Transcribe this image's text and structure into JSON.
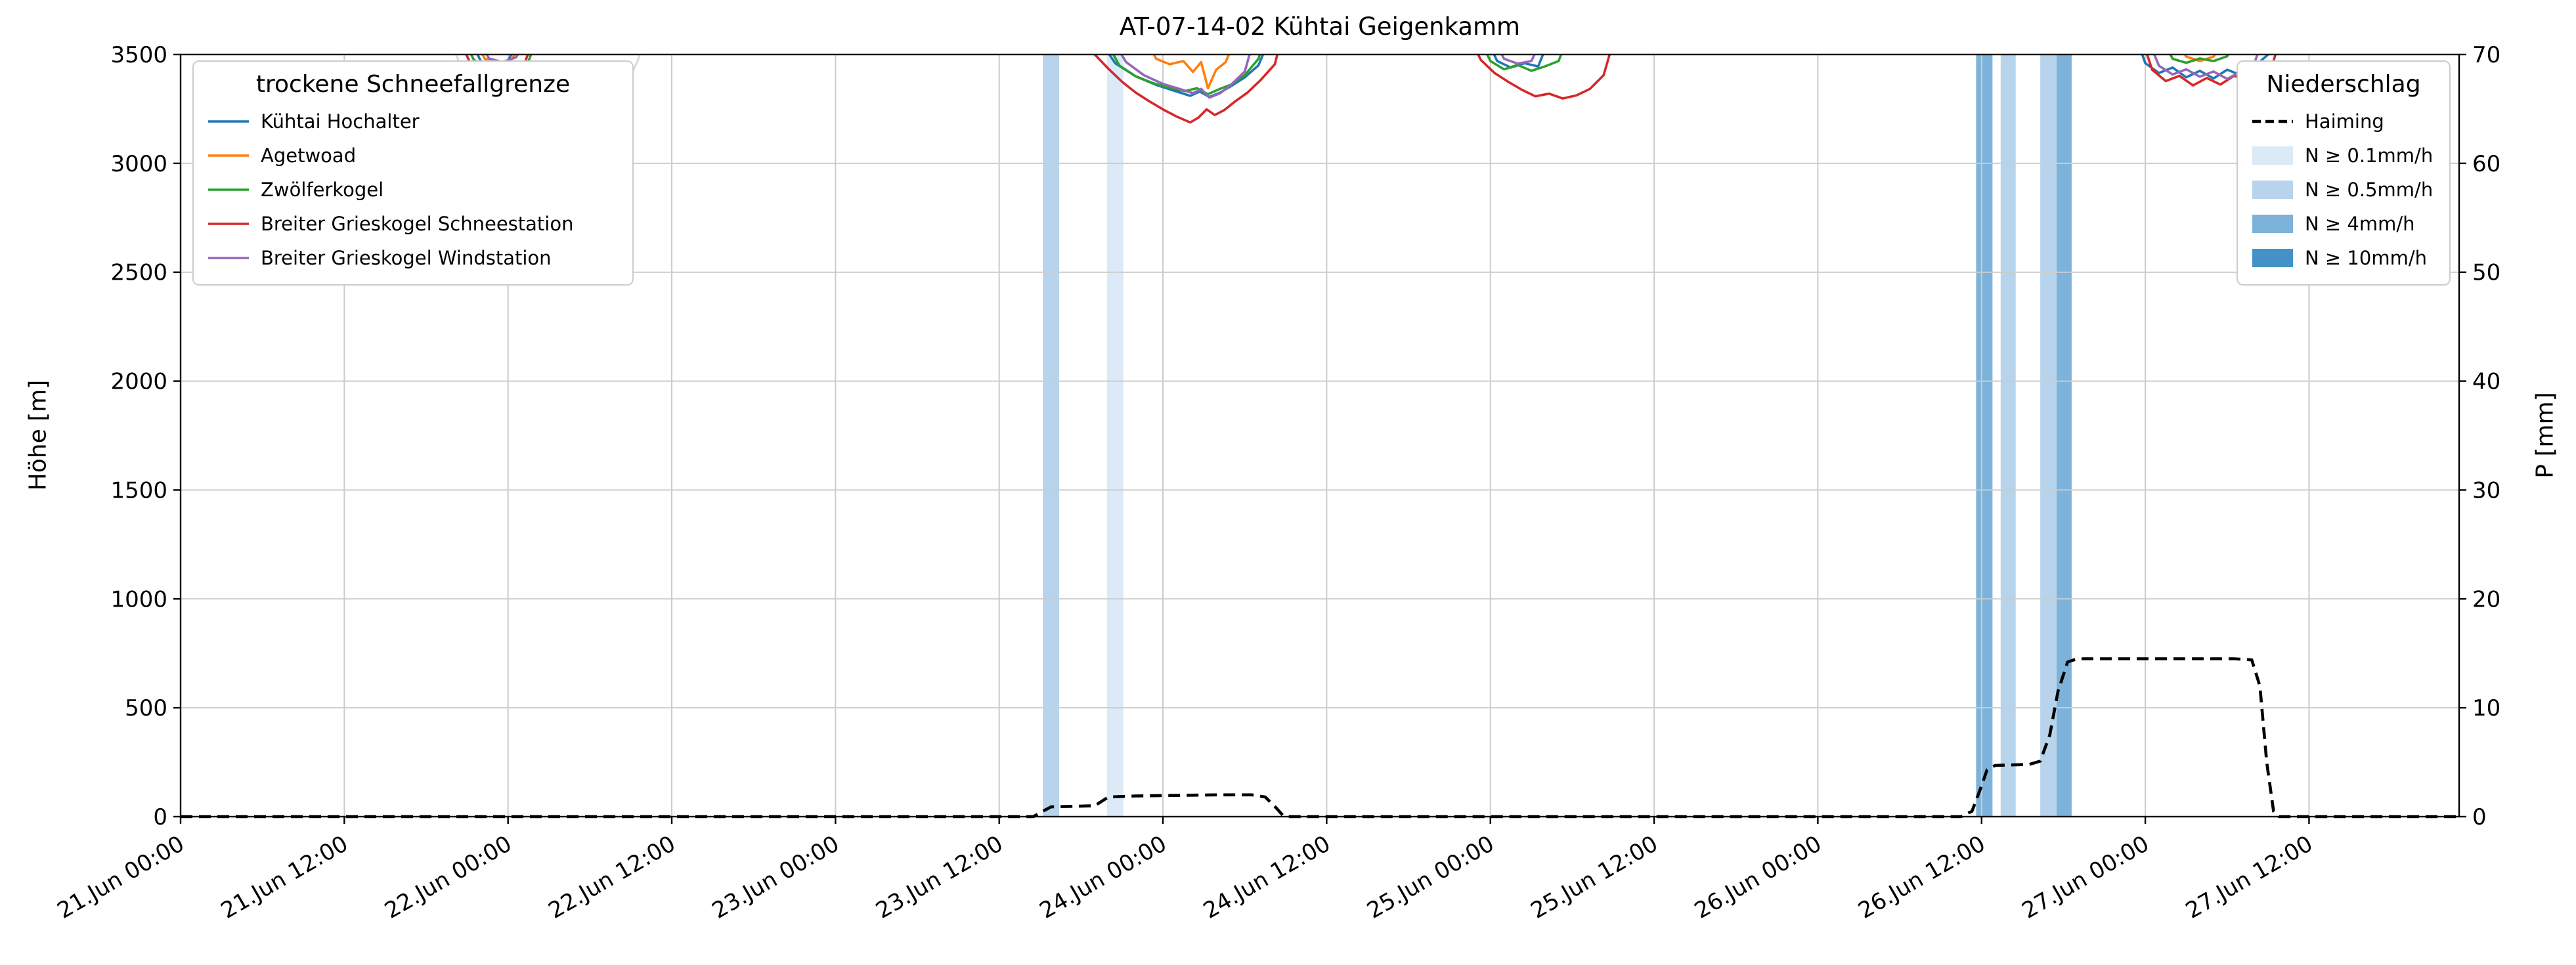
{
  "chart_data": {
    "type": "line",
    "title": "AT-07-14-02 Kühtai Geigenkamm",
    "ylabel_left": "Höhe [m]",
    "ylabel_right": "P [mm]",
    "ylim_left": [
      0,
      3500
    ],
    "ylim_right": [
      0,
      70
    ],
    "xlim": [
      0,
      167
    ],
    "x_unit": "hours since 21.Jun 00:00",
    "grid": true,
    "x_ticks": [
      {
        "h": 0,
        "label": "21.Jun 00:00"
      },
      {
        "h": 12,
        "label": "21.Jun 12:00"
      },
      {
        "h": 24,
        "label": "22.Jun 00:00"
      },
      {
        "h": 36,
        "label": "22.Jun 12:00"
      },
      {
        "h": 48,
        "label": "23.Jun 00:00"
      },
      {
        "h": 60,
        "label": "23.Jun 12:00"
      },
      {
        "h": 72,
        "label": "24.Jun 00:00"
      },
      {
        "h": 84,
        "label": "24.Jun 12:00"
      },
      {
        "h": 96,
        "label": "25.Jun 00:00"
      },
      {
        "h": 108,
        "label": "25.Jun 12:00"
      },
      {
        "h": 120,
        "label": "26.Jun 00:00"
      },
      {
        "h": 132,
        "label": "26.Jun 12:00"
      },
      {
        "h": 144,
        "label": "27.Jun 00:00"
      },
      {
        "h": 156,
        "label": "27.Jun 12:00"
      }
    ],
    "y_ticks_left": [
      0,
      500,
      1000,
      1500,
      2000,
      2500,
      3000,
      3500
    ],
    "y_ticks_right": [
      0,
      10,
      20,
      30,
      40,
      50,
      60,
      70
    ],
    "legend_snowline": {
      "title": "trockene Schneefallgrenze",
      "entries": [
        {
          "label": "Kühtai Hochalter",
          "color": "#1f77b4"
        },
        {
          "label": "Agetwoad",
          "color": "#ff7f0e"
        },
        {
          "label": "Zwölferkogel",
          "color": "#2ca02c"
        },
        {
          "label": "Breiter Grieskogel Schneestation",
          "color": "#d62728"
        },
        {
          "label": "Breiter Grieskogel Windstation",
          "color": "#9467bd"
        }
      ]
    },
    "legend_precip": {
      "title": "Niederschlag",
      "line_entry": {
        "label": "Haiming",
        "color": "#000000",
        "dashed": true
      },
      "band_entries": [
        {
          "label": "N ≥ 0.1mm/h",
          "level": "0.1"
        },
        {
          "label": "N ≥ 0.5mm/h",
          "level": "0.5"
        },
        {
          "label": "N ≥ 4mm/h",
          "level": "4"
        },
        {
          "label": "N ≥ 10mm/h",
          "level": "10"
        }
      ]
    },
    "band_colors": {
      "0.1": "#dce9f6",
      "0.5": "#b7d4ec",
      "4": "#7db3da",
      "10": "#4292c6"
    },
    "precip_bands": [
      {
        "start": 63.2,
        "end": 64.4,
        "level": "0.5"
      },
      {
        "start": 67.9,
        "end": 69.1,
        "level": "0.1"
      },
      {
        "start": 131.6,
        "end": 132.8,
        "level": "4"
      },
      {
        "start": 133.4,
        "end": 134.5,
        "level": "0.5"
      },
      {
        "start": 136.3,
        "end": 137.5,
        "level": "0.5"
      },
      {
        "start": 137.5,
        "end": 138.6,
        "level": "4"
      }
    ],
    "series": [
      {
        "name": "unlabeled",
        "color": "#d9d9d9",
        "axis": "left",
        "width": 3,
        "segments": [
          [
            [
              19.5,
              3600
            ],
            [
              21,
              3380
            ],
            [
              22.5,
              3200
            ],
            [
              24,
              3080
            ],
            [
              25.5,
              2990
            ],
            [
              26.5,
              2955
            ],
            [
              27.5,
              2990
            ],
            [
              28.5,
              3040
            ],
            [
              29.5,
              3015
            ],
            [
              30.5,
              3090
            ],
            [
              31.5,
              3200
            ],
            [
              32.5,
              3340
            ],
            [
              33.5,
              3470
            ],
            [
              34.2,
              3600
            ]
          ]
        ]
      },
      {
        "name": "Kühtai Hochalter",
        "color": "#1f77b4",
        "axis": "left",
        "segments": [
          [
            [
              21,
              3600
            ],
            [
              22,
              3470
            ],
            [
              23,
              3450
            ],
            [
              24,
              3470
            ],
            [
              25,
              3600
            ]
          ],
          [
            [
              67,
              3600
            ],
            [
              68.5,
              3460
            ],
            [
              70,
              3400
            ],
            [
              71.5,
              3360
            ],
            [
              73,
              3330
            ],
            [
              74,
              3310
            ],
            [
              74.7,
              3330
            ],
            [
              75.4,
              3305
            ],
            [
              76.2,
              3325
            ],
            [
              77,
              3355
            ],
            [
              78,
              3395
            ],
            [
              79,
              3450
            ],
            [
              80,
              3600
            ]
          ],
          [
            [
              95.5,
              3600
            ],
            [
              96.5,
              3470
            ],
            [
              97.5,
              3440
            ],
            [
              98.5,
              3460
            ],
            [
              99.5,
              3445
            ],
            [
              100.5,
              3600
            ]
          ],
          [
            [
              143.2,
              3600
            ],
            [
              144,
              3460
            ],
            [
              145,
              3415
            ],
            [
              146,
              3440
            ],
            [
              147,
              3395
            ],
            [
              148,
              3425
            ],
            [
              149,
              3390
            ],
            [
              150,
              3430
            ],
            [
              151,
              3405
            ],
            [
              152,
              3445
            ],
            [
              153,
              3500
            ],
            [
              153.6,
              3600
            ]
          ]
        ]
      },
      {
        "name": "Agetwoad",
        "color": "#ff7f0e",
        "axis": "left",
        "segments": [
          [
            [
              21.3,
              3600
            ],
            [
              22.3,
              3480
            ],
            [
              23.3,
              3460
            ],
            [
              24.3,
              3480
            ],
            [
              25.3,
              3600
            ]
          ],
          [
            [
              70.5,
              3600
            ],
            [
              71.5,
              3480
            ],
            [
              72.5,
              3455
            ],
            [
              73.5,
              3470
            ],
            [
              74.2,
              3420
            ],
            [
              74.8,
              3465
            ],
            [
              75.3,
              3345
            ],
            [
              75.9,
              3430
            ],
            [
              76.6,
              3465
            ],
            [
              77.5,
              3600
            ]
          ],
          [
            [
              146,
              3600
            ],
            [
              147,
              3490
            ],
            [
              148,
              3470
            ],
            [
              149,
              3490
            ],
            [
              150,
              3600
            ]
          ]
        ]
      },
      {
        "name": "Zwölferkogel",
        "color": "#2ca02c",
        "axis": "left",
        "segments": [
          [
            [
              20.5,
              3600
            ],
            [
              21.5,
              3475
            ],
            [
              22.5,
              3440
            ],
            [
              23.5,
              3460
            ],
            [
              24.5,
              3435
            ],
            [
              25.5,
              3470
            ],
            [
              26.3,
              3600
            ]
          ],
          [
            [
              67.5,
              3600
            ],
            [
              68.8,
              3450
            ],
            [
              70,
              3400
            ],
            [
              71.2,
              3370
            ],
            [
              72.4,
              3348
            ],
            [
              73.6,
              3332
            ],
            [
              74.5,
              3345
            ],
            [
              75.3,
              3318
            ],
            [
              76.1,
              3340
            ],
            [
              77,
              3362
            ],
            [
              78,
              3405
            ],
            [
              79,
              3480
            ],
            [
              79.6,
              3600
            ]
          ],
          [
            [
              95,
              3600
            ],
            [
              96,
              3470
            ],
            [
              97,
              3432
            ],
            [
              98,
              3452
            ],
            [
              99,
              3425
            ],
            [
              100,
              3445
            ],
            [
              101,
              3470
            ],
            [
              101.8,
              3600
            ]
          ],
          [
            [
              145,
              3600
            ],
            [
              146,
              3480
            ],
            [
              147,
              3462
            ],
            [
              148,
              3482
            ],
            [
              149,
              3470
            ],
            [
              150,
              3492
            ],
            [
              150.8,
              3600
            ]
          ]
        ]
      },
      {
        "name": "Breiter Grieskogel Schneestation",
        "color": "#d62728",
        "axis": "left",
        "segments": [
          [
            [
              20.2,
              3600
            ],
            [
              21.2,
              3465
            ],
            [
              22.2,
              3428
            ],
            [
              23.2,
              3448
            ],
            [
              24.2,
              3420
            ],
            [
              25.2,
              3455
            ],
            [
              26,
              3600
            ]
          ],
          [
            [
              66,
              3600
            ],
            [
              67,
              3500
            ],
            [
              68,
              3435
            ],
            [
              69,
              3375
            ],
            [
              70,
              3325
            ],
            [
              71,
              3285
            ],
            [
              72,
              3248
            ],
            [
              73,
              3215
            ],
            [
              74,
              3188
            ],
            [
              74.6,
              3210
            ],
            [
              75.2,
              3248
            ],
            [
              75.8,
              3222
            ],
            [
              76.5,
              3245
            ],
            [
              77.3,
              3285
            ],
            [
              78.2,
              3325
            ],
            [
              79.2,
              3385
            ],
            [
              80.2,
              3455
            ],
            [
              80.8,
              3600
            ]
          ],
          [
            [
              94.3,
              3600
            ],
            [
              95.3,
              3475
            ],
            [
              96.3,
              3415
            ],
            [
              97.3,
              3375
            ],
            [
              98.3,
              3338
            ],
            [
              99.3,
              3308
            ],
            [
              100.3,
              3320
            ],
            [
              101.3,
              3298
            ],
            [
              102.3,
              3312
            ],
            [
              103.3,
              3342
            ],
            [
              104.3,
              3405
            ],
            [
              105.2,
              3600
            ]
          ],
          [
            [
              143.6,
              3600
            ],
            [
              144.5,
              3430
            ],
            [
              145.5,
              3378
            ],
            [
              146.5,
              3402
            ],
            [
              147.5,
              3358
            ],
            [
              148.5,
              3392
            ],
            [
              149.5,
              3362
            ],
            [
              150.5,
              3402
            ],
            [
              151.5,
              3382
            ],
            [
              152.5,
              3432
            ],
            [
              153.4,
              3470
            ],
            [
              154,
              3600
            ]
          ]
        ]
      },
      {
        "name": "Breiter Grieskogel Windstation",
        "color": "#9467bd",
        "axis": "left",
        "segments": [
          [
            [
              21.6,
              3600
            ],
            [
              22.6,
              3482
            ],
            [
              23.6,
              3465
            ],
            [
              24.6,
              3487
            ],
            [
              25.5,
              3600
            ]
          ],
          [
            [
              68,
              3600
            ],
            [
              69.3,
              3465
            ],
            [
              70.6,
              3405
            ],
            [
              72,
              3365
            ],
            [
              73.2,
              3342
            ],
            [
              74.2,
              3322
            ],
            [
              74.8,
              3342
            ],
            [
              75.4,
              3302
            ],
            [
              76.2,
              3322
            ],
            [
              77,
              3362
            ],
            [
              78,
              3422
            ],
            [
              78.8,
              3600
            ]
          ],
          [
            [
              96,
              3600
            ],
            [
              97,
              3480
            ],
            [
              98,
              3458
            ],
            [
              99,
              3470
            ],
            [
              100,
              3600
            ]
          ],
          [
            [
              144,
              3600
            ],
            [
              145,
              3448
            ],
            [
              146,
              3408
            ],
            [
              147,
              3432
            ],
            [
              148,
              3398
            ],
            [
              149,
              3422
            ],
            [
              150,
              3388
            ],
            [
              151,
              3422
            ],
            [
              152,
              3462
            ],
            [
              152.8,
              3600
            ]
          ]
        ]
      },
      {
        "name": "Haiming",
        "color": "#000000",
        "axis": "right",
        "dashed": true,
        "segments": [
          [
            [
              0,
              0
            ],
            [
              62.5,
              0
            ],
            [
              63.2,
              0.5
            ],
            [
              63.8,
              0.9
            ],
            [
              67,
              1.0
            ],
            [
              68,
              1.8
            ],
            [
              70,
              1.9
            ],
            [
              76,
              2.0
            ],
            [
              78.5,
              2.0
            ],
            [
              79.5,
              1.8
            ],
            [
              80.3,
              0.8
            ],
            [
              80.8,
              0.1
            ],
            [
              81.2,
              0
            ],
            [
              130.5,
              0
            ],
            [
              131.3,
              0.5
            ],
            [
              131.9,
              2.5
            ],
            [
              132.4,
              4.3
            ],
            [
              133,
              4.7
            ],
            [
              135.5,
              4.8
            ],
            [
              136.3,
              5.1
            ],
            [
              137,
              7.5
            ],
            [
              137.6,
              11.5
            ],
            [
              138.3,
              14.2
            ],
            [
              139,
              14.5
            ],
            [
              150.5,
              14.5
            ],
            [
              151.8,
              14.4
            ],
            [
              152.4,
              12
            ],
            [
              152.9,
              5
            ],
            [
              153.4,
              0.5
            ],
            [
              153.8,
              0
            ],
            [
              167,
              0
            ]
          ]
        ]
      }
    ]
  }
}
